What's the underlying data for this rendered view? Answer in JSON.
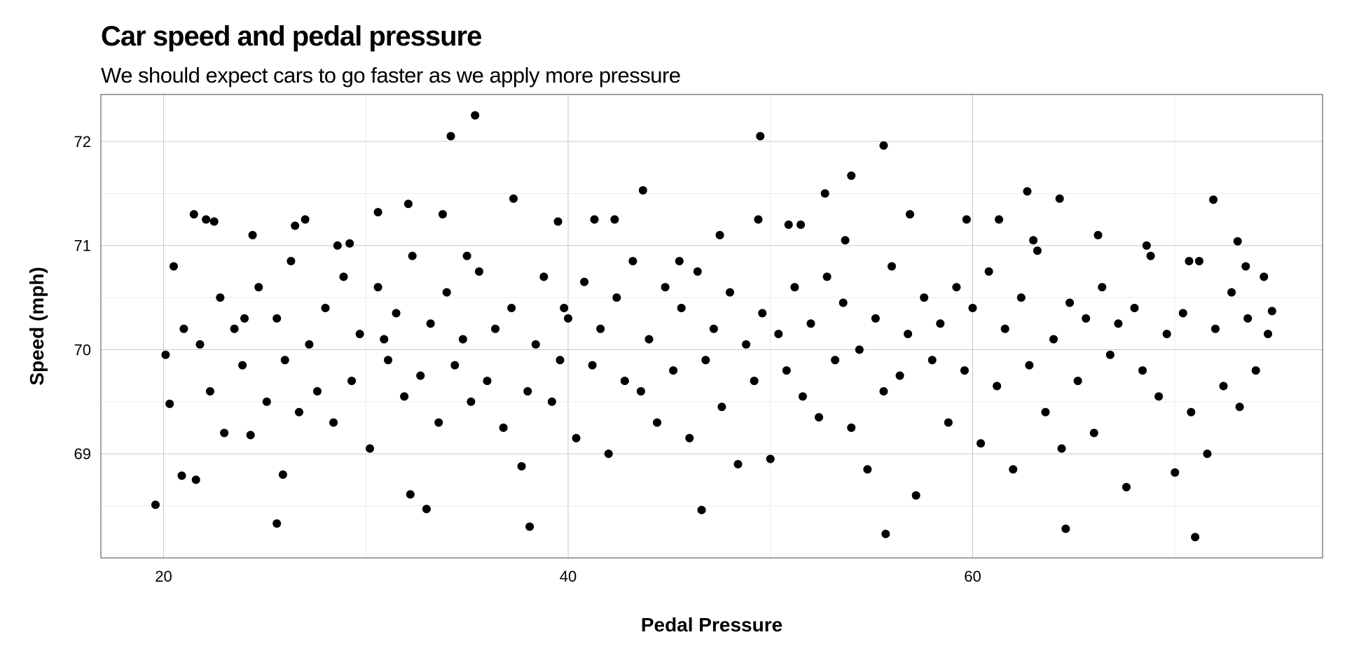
{
  "chart_data": {
    "type": "scatter",
    "title": "Car speed and pedal pressure",
    "subtitle": "We should expect cars to go faster as we apply more pressure",
    "xlabel": "Pedal Pressure",
    "ylabel": "Speed (mph)",
    "xlim": [
      16.9,
      77.3
    ],
    "ylim": [
      68.0,
      72.45
    ],
    "x_ticks": [
      20,
      40,
      60
    ],
    "y_ticks": [
      69,
      70,
      71,
      72
    ],
    "grid": true,
    "point_color": "#000000",
    "series": [
      {
        "points": [
          [
            19.6,
            68.51
          ],
          [
            20.5,
            70.8
          ],
          [
            21.5,
            71.3
          ],
          [
            22.5,
            71.23
          ],
          [
            24.4,
            71.1
          ],
          [
            25.6,
            68.33
          ],
          [
            26.5,
            71.19
          ],
          [
            29.2,
            71.02
          ],
          [
            30.6,
            71.32
          ],
          [
            32.2,
            68.61
          ],
          [
            33.0,
            68.47
          ],
          [
            34.2,
            72.05
          ],
          [
            35.4,
            72.25
          ],
          [
            38.1,
            68.3
          ],
          [
            39.5,
            71.23
          ],
          [
            43.7,
            71.53
          ],
          [
            46.6,
            68.46
          ],
          [
            49.5,
            72.05
          ],
          [
            51.5,
            71.2
          ],
          [
            54.0,
            71.67
          ],
          [
            55.6,
            71.96
          ],
          [
            55.7,
            68.23
          ],
          [
            62.7,
            71.52
          ],
          [
            64.3,
            71.45
          ],
          [
            64.6,
            68.28
          ],
          [
            71.0,
            68.2
          ],
          [
            71.9,
            71.44
          ],
          [
            73.1,
            71.04
          ],
          [
            74.8,
            70.37
          ],
          [
            23.0,
            69.2
          ],
          [
            20.3,
            69.48
          ],
          [
            20.1,
            69.95
          ],
          [
            20.9,
            68.79
          ],
          [
            21.6,
            68.75
          ],
          [
            22.3,
            69.6
          ],
          [
            22.8,
            70.5
          ],
          [
            23.5,
            70.2
          ],
          [
            23.9,
            69.85
          ],
          [
            24.3,
            69.18
          ],
          [
            24.7,
            70.6
          ],
          [
            25.1,
            69.5
          ],
          [
            25.6,
            70.3
          ],
          [
            26.0,
            69.9
          ],
          [
            26.3,
            70.85
          ],
          [
            26.7,
            69.4
          ],
          [
            27.2,
            70.05
          ],
          [
            27.6,
            69.6
          ],
          [
            28.0,
            70.4
          ],
          [
            28.4,
            69.3
          ],
          [
            28.9,
            70.7
          ],
          [
            29.3,
            69.7
          ],
          [
            29.7,
            70.15
          ],
          [
            30.2,
            69.05
          ],
          [
            30.6,
            70.6
          ],
          [
            31.1,
            69.9
          ],
          [
            31.5,
            70.35
          ],
          [
            31.9,
            69.55
          ],
          [
            32.3,
            70.9
          ],
          [
            32.7,
            69.75
          ],
          [
            33.2,
            70.25
          ],
          [
            33.6,
            69.3
          ],
          [
            34.0,
            70.55
          ],
          [
            34.4,
            69.85
          ],
          [
            34.8,
            70.1
          ],
          [
            35.2,
            69.5
          ],
          [
            35.6,
            70.75
          ],
          [
            36.0,
            69.7
          ],
          [
            36.4,
            70.2
          ],
          [
            36.8,
            69.25
          ],
          [
            37.2,
            70.4
          ],
          [
            37.7,
            68.88
          ],
          [
            38.0,
            69.6
          ],
          [
            38.4,
            70.05
          ],
          [
            38.8,
            70.7
          ],
          [
            39.2,
            69.5
          ],
          [
            39.6,
            69.9
          ],
          [
            40.0,
            70.3
          ],
          [
            40.4,
            69.15
          ],
          [
            40.8,
            70.65
          ],
          [
            41.2,
            69.85
          ],
          [
            41.6,
            70.2
          ],
          [
            42.0,
            69.0
          ],
          [
            42.4,
            70.5
          ],
          [
            42.8,
            69.7
          ],
          [
            43.2,
            70.85
          ],
          [
            43.6,
            69.6
          ],
          [
            44.0,
            70.1
          ],
          [
            44.4,
            69.3
          ],
          [
            44.8,
            70.6
          ],
          [
            45.2,
            69.8
          ],
          [
            45.6,
            70.4
          ],
          [
            46.0,
            69.15
          ],
          [
            46.4,
            70.75
          ],
          [
            46.8,
            69.9
          ],
          [
            47.2,
            70.2
          ],
          [
            47.6,
            69.45
          ],
          [
            48.0,
            70.55
          ],
          [
            48.4,
            68.9
          ],
          [
            48.8,
            70.05
          ],
          [
            49.2,
            69.7
          ],
          [
            49.6,
            70.35
          ],
          [
            50.0,
            68.95
          ],
          [
            50.4,
            70.15
          ],
          [
            50.8,
            69.8
          ],
          [
            51.2,
            70.6
          ],
          [
            51.6,
            69.55
          ],
          [
            52.0,
            70.25
          ],
          [
            52.4,
            69.35
          ],
          [
            52.8,
            70.7
          ],
          [
            53.2,
            69.9
          ],
          [
            53.6,
            70.45
          ],
          [
            54.0,
            69.25
          ],
          [
            54.4,
            70.0
          ],
          [
            54.8,
            68.85
          ],
          [
            55.2,
            70.3
          ],
          [
            55.6,
            69.6
          ],
          [
            56.0,
            70.8
          ],
          [
            56.4,
            69.75
          ],
          [
            56.8,
            70.15
          ],
          [
            57.2,
            68.6
          ],
          [
            57.6,
            70.5
          ],
          [
            58.0,
            69.9
          ],
          [
            58.4,
            70.25
          ],
          [
            58.8,
            69.3
          ],
          [
            59.2,
            70.6
          ],
          [
            59.6,
            69.8
          ],
          [
            60.0,
            70.4
          ],
          [
            60.4,
            69.1
          ],
          [
            60.8,
            70.75
          ],
          [
            61.2,
            69.65
          ],
          [
            61.6,
            70.2
          ],
          [
            62.0,
            68.85
          ],
          [
            62.4,
            70.5
          ],
          [
            62.8,
            69.85
          ],
          [
            63.2,
            70.95
          ],
          [
            63.6,
            69.4
          ],
          [
            64.0,
            70.1
          ],
          [
            64.4,
            69.05
          ],
          [
            64.8,
            70.45
          ],
          [
            65.2,
            69.7
          ],
          [
            65.6,
            70.3
          ],
          [
            66.0,
            69.2
          ],
          [
            66.4,
            70.6
          ],
          [
            66.8,
            69.95
          ],
          [
            67.2,
            70.25
          ],
          [
            67.6,
            68.68
          ],
          [
            68.0,
            70.4
          ],
          [
            68.4,
            69.8
          ],
          [
            68.8,
            70.9
          ],
          [
            69.2,
            69.55
          ],
          [
            69.6,
            70.15
          ],
          [
            70.0,
            68.82
          ],
          [
            70.4,
            70.35
          ],
          [
            70.8,
            69.4
          ],
          [
            71.2,
            70.85
          ],
          [
            71.6,
            69.0
          ],
          [
            72.0,
            70.2
          ],
          [
            72.4,
            69.65
          ],
          [
            72.8,
            70.55
          ],
          [
            73.2,
            69.45
          ],
          [
            73.6,
            70.3
          ],
          [
            74.0,
            69.8
          ],
          [
            74.4,
            70.7
          ],
          [
            74.6,
            70.15
          ],
          [
            21.0,
            70.2
          ],
          [
            21.8,
            70.05
          ],
          [
            22.1,
            71.25
          ],
          [
            24.0,
            70.3
          ],
          [
            25.9,
            68.8
          ],
          [
            27.0,
            71.25
          ],
          [
            28.6,
            71.0
          ],
          [
            30.9,
            70.1
          ],
          [
            32.1,
            71.4
          ],
          [
            33.8,
            71.3
          ],
          [
            35.0,
            70.9
          ],
          [
            37.3,
            71.45
          ],
          [
            39.8,
            70.4
          ],
          [
            41.3,
            71.25
          ],
          [
            42.3,
            71.25
          ],
          [
            45.5,
            70.85
          ],
          [
            47.5,
            71.1
          ],
          [
            49.4,
            71.25
          ],
          [
            50.9,
            71.2
          ],
          [
            52.7,
            71.5
          ],
          [
            53.7,
            71.05
          ],
          [
            56.9,
            71.3
          ],
          [
            59.7,
            71.25
          ],
          [
            61.3,
            71.25
          ],
          [
            63.0,
            71.05
          ],
          [
            66.2,
            71.1
          ],
          [
            68.6,
            71.0
          ],
          [
            70.7,
            70.85
          ],
          [
            73.5,
            70.8
          ]
        ]
      }
    ]
  }
}
